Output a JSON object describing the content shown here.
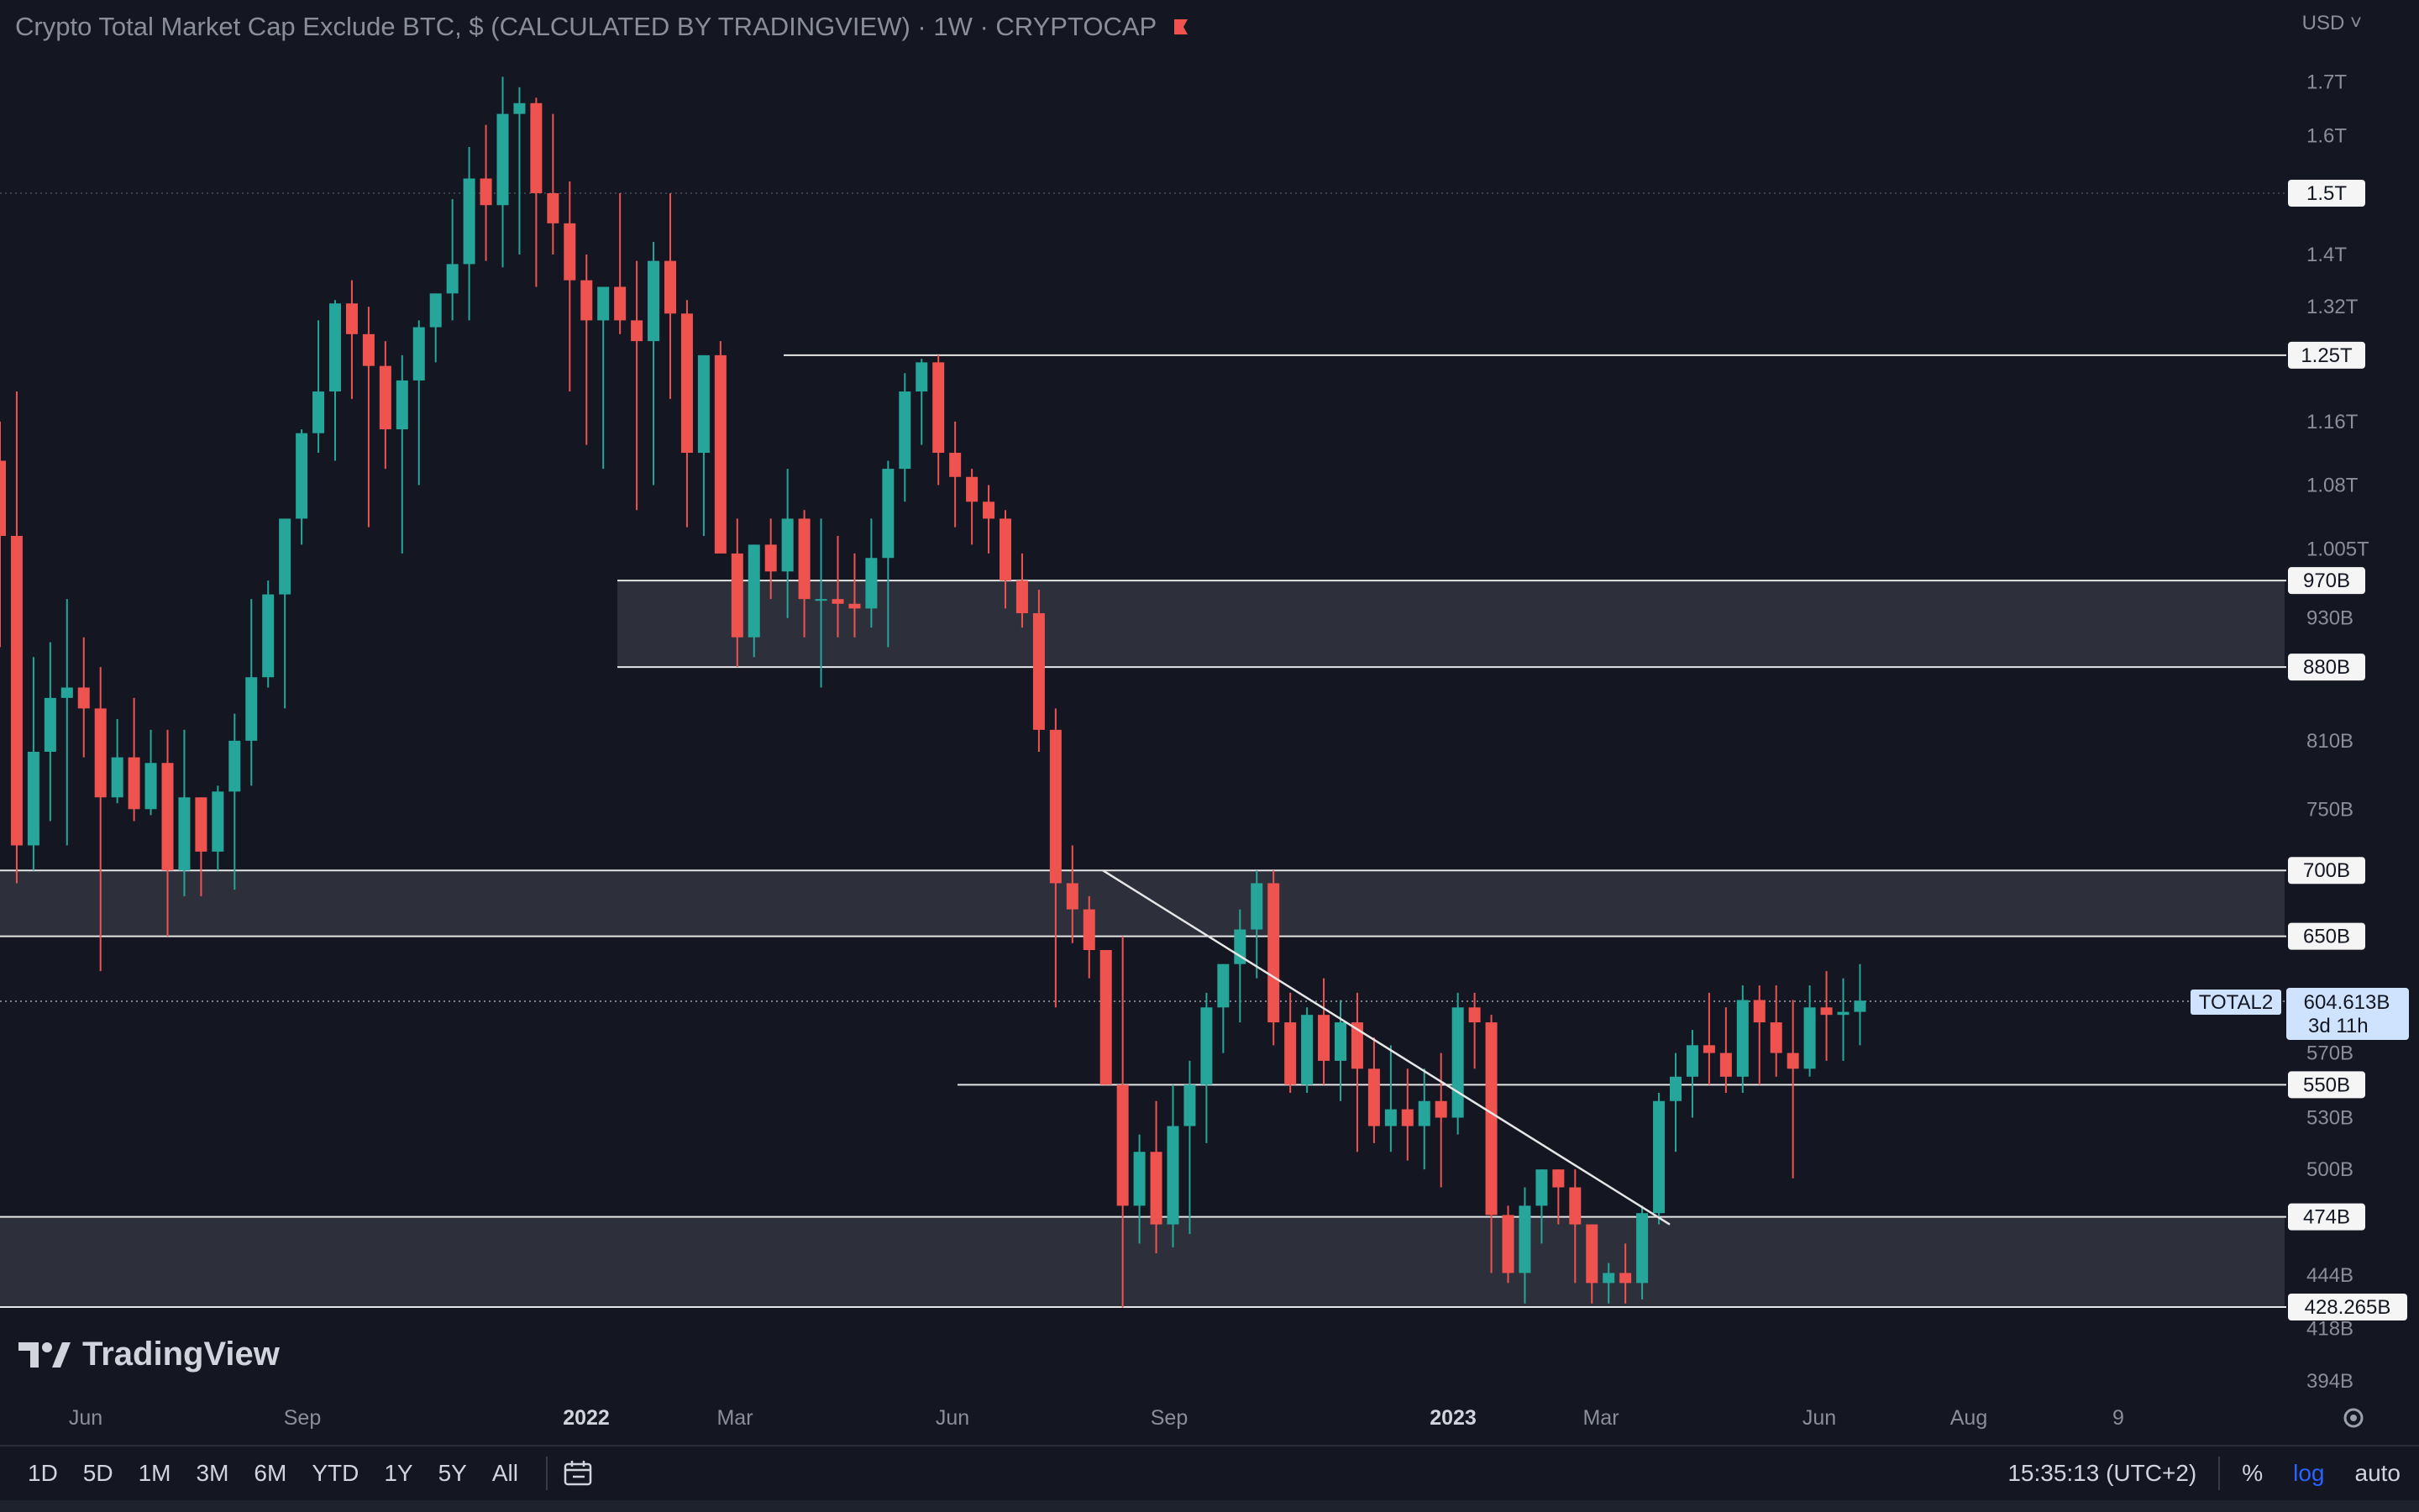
{
  "header": {
    "title": "Crypto Total Market Cap Exclude BTC, $ (CALCULATED BY TRADINGVIEW) · 1W · CRYPTOCAP",
    "currency": "USD"
  },
  "colors": {
    "background": "#141722",
    "up": "#26a69a",
    "down": "#ef5350",
    "level_line": "#e6e6e6",
    "zone_fill": "#2d303b",
    "last_price_tag": "#cfe3ff"
  },
  "brand": {
    "name": "TradingView"
  },
  "chart_data": {
    "type": "candlestick",
    "symbol": "TOTAL2",
    "interval": "1W",
    "y_scale": "log",
    "ylim": [
      385,
      1800
    ],
    "y_ticks": [
      "1.7T",
      "1.6T",
      "1.4T",
      "1.32T",
      "1.16T",
      "1.08T",
      "1.005T",
      "930B",
      "810B",
      "750B",
      "570B",
      "530B",
      "500B",
      "444B",
      "418B",
      "394B"
    ],
    "x_ticks": [
      "Jun",
      "Sep",
      "2022",
      "Mar",
      "Jun",
      "Sep",
      "2023",
      "Mar",
      "Jun",
      "Aug",
      "9"
    ],
    "level_labels": [
      "1.5T",
      "1.25T",
      "970B",
      "880B",
      "700B",
      "650B",
      "550B",
      "474B",
      "428.265B"
    ],
    "last_price": {
      "symbol": "TOTAL2",
      "value": "604.613B",
      "countdown": "3d 11h"
    },
    "zones": [
      {
        "top": 970,
        "bottom": 880
      },
      {
        "top": 700,
        "bottom": 650
      },
      {
        "top": 474,
        "bottom": 428.265
      }
    ],
    "levels": [
      1500,
      1250,
      970,
      880,
      700,
      650,
      550,
      474,
      428.265
    ],
    "trendline": {
      "from": [
        "2022-08-14",
        700
      ],
      "to": [
        "2023-03-26",
        470
      ]
    },
    "candles_ohlc_billion_usd": [
      [
        1110,
        1160,
        900,
        1020
      ],
      [
        1020,
        1200,
        690,
        720
      ],
      [
        720,
        890,
        700,
        800
      ],
      [
        800,
        905,
        740,
        850
      ],
      [
        850,
        950,
        720,
        860
      ],
      [
        860,
        910,
        795,
        840
      ],
      [
        840,
        880,
        625,
        760
      ],
      [
        760,
        830,
        755,
        795
      ],
      [
        795,
        850,
        740,
        750
      ],
      [
        750,
        820,
        745,
        790
      ],
      [
        790,
        820,
        650,
        700
      ],
      [
        700,
        820,
        680,
        760
      ],
      [
        760,
        760,
        680,
        715
      ],
      [
        715,
        770,
        700,
        765
      ],
      [
        765,
        835,
        685,
        810
      ],
      [
        810,
        950,
        770,
        870
      ],
      [
        870,
        970,
        860,
        955
      ],
      [
        955,
        1010,
        840,
        1040
      ],
      [
        1040,
        1150,
        1010,
        1145
      ],
      [
        1145,
        1300,
        1120,
        1200
      ],
      [
        1200,
        1330,
        1110,
        1325
      ],
      [
        1325,
        1360,
        1190,
        1280
      ],
      [
        1280,
        1320,
        1030,
        1235
      ],
      [
        1235,
        1270,
        1100,
        1150
      ],
      [
        1150,
        1250,
        1000,
        1215
      ],
      [
        1215,
        1300,
        1080,
        1290
      ],
      [
        1290,
        1340,
        1240,
        1340
      ],
      [
        1340,
        1490,
        1300,
        1385
      ],
      [
        1385,
        1580,
        1300,
        1525
      ],
      [
        1525,
        1620,
        1390,
        1480
      ],
      [
        1480,
        1710,
        1380,
        1640
      ],
      [
        1640,
        1690,
        1400,
        1660
      ],
      [
        1660,
        1670,
        1350,
        1500
      ],
      [
        1500,
        1640,
        1400,
        1450
      ],
      [
        1450,
        1520,
        1200,
        1360
      ],
      [
        1360,
        1400,
        1130,
        1300
      ],
      [
        1300,
        1350,
        1100,
        1350
      ],
      [
        1350,
        1500,
        1280,
        1300
      ],
      [
        1300,
        1390,
        1050,
        1270
      ],
      [
        1270,
        1420,
        1080,
        1390
      ],
      [
        1390,
        1500,
        1190,
        1310
      ],
      [
        1310,
        1330,
        1030,
        1120
      ],
      [
        1120,
        1250,
        1020,
        1250
      ],
      [
        1250,
        1270,
        1060,
        1000
      ],
      [
        1000,
        1040,
        880,
        910
      ],
      [
        910,
        1010,
        890,
        1010
      ],
      [
        1010,
        1040,
        950,
        980
      ],
      [
        980,
        1100,
        930,
        1040
      ],
      [
        1040,
        1050,
        910,
        950
      ],
      [
        950,
        1040,
        860,
        950
      ],
      [
        950,
        1020,
        910,
        945
      ],
      [
        945,
        1000,
        910,
        940
      ],
      [
        940,
        1040,
        920,
        995
      ],
      [
        995,
        1110,
        900,
        1100
      ],
      [
        1100,
        1225,
        1060,
        1200
      ],
      [
        1200,
        1245,
        1130,
        1240
      ],
      [
        1240,
        1250,
        1080,
        1120
      ],
      [
        1120,
        1160,
        1030,
        1090
      ],
      [
        1090,
        1100,
        1010,
        1060
      ],
      [
        1060,
        1080,
        1000,
        1040
      ],
      [
        1040,
        1050,
        940,
        970
      ],
      [
        970,
        1000,
        920,
        935
      ],
      [
        935,
        960,
        800,
        820
      ],
      [
        820,
        840,
        600,
        690
      ],
      [
        690,
        720,
        645,
        670
      ],
      [
        670,
        680,
        620,
        640
      ],
      [
        640,
        640,
        550,
        550
      ],
      [
        550,
        650,
        428,
        480
      ],
      [
        480,
        520,
        460,
        510
      ],
      [
        510,
        540,
        455,
        470
      ],
      [
        470,
        550,
        458,
        525
      ],
      [
        525,
        565,
        465,
        550
      ],
      [
        550,
        610,
        515,
        600
      ],
      [
        600,
        630,
        570,
        630
      ],
      [
        630,
        670,
        590,
        655
      ],
      [
        655,
        700,
        620,
        690
      ],
      [
        690,
        700,
        575,
        590
      ],
      [
        590,
        610,
        545,
        550
      ],
      [
        550,
        600,
        545,
        595
      ],
      [
        595,
        620,
        550,
        565
      ],
      [
        565,
        605,
        540,
        590
      ],
      [
        590,
        610,
        510,
        560
      ],
      [
        560,
        580,
        515,
        525
      ],
      [
        525,
        575,
        510,
        535
      ],
      [
        535,
        560,
        505,
        525
      ],
      [
        525,
        560,
        500,
        540
      ],
      [
        540,
        570,
        490,
        530
      ],
      [
        530,
        610,
        520,
        600
      ],
      [
        600,
        610,
        560,
        590
      ],
      [
        590,
        595,
        445,
        475
      ],
      [
        475,
        480,
        440,
        445
      ],
      [
        445,
        490,
        430,
        480
      ],
      [
        480,
        500,
        460,
        500
      ],
      [
        500,
        500,
        470,
        490
      ],
      [
        490,
        500,
        440,
        470
      ],
      [
        470,
        470,
        430,
        440
      ],
      [
        440,
        450,
        430,
        445
      ],
      [
        445,
        460,
        430,
        440
      ],
      [
        440,
        480,
        432,
        476
      ],
      [
        476,
        545,
        470,
        540
      ],
      [
        540,
        570,
        510,
        555
      ],
      [
        555,
        585,
        530,
        575
      ],
      [
        575,
        610,
        550,
        570
      ],
      [
        570,
        600,
        545,
        555
      ],
      [
        555,
        615,
        545,
        605
      ],
      [
        605,
        615,
        550,
        590
      ],
      [
        590,
        615,
        555,
        570
      ],
      [
        570,
        605,
        495,
        560
      ],
      [
        560,
        615,
        555,
        600
      ],
      [
        600,
        625,
        565,
        595
      ],
      [
        595,
        620,
        565,
        597
      ],
      [
        597,
        630,
        575,
        604.613
      ]
    ]
  },
  "toolbar": {
    "timeframes": [
      "1D",
      "5D",
      "1M",
      "3M",
      "6M",
      "YTD",
      "1Y",
      "5Y",
      "All"
    ],
    "time": "15:35:13 (UTC+2)",
    "percent": "%",
    "log": "log",
    "auto": "auto"
  }
}
